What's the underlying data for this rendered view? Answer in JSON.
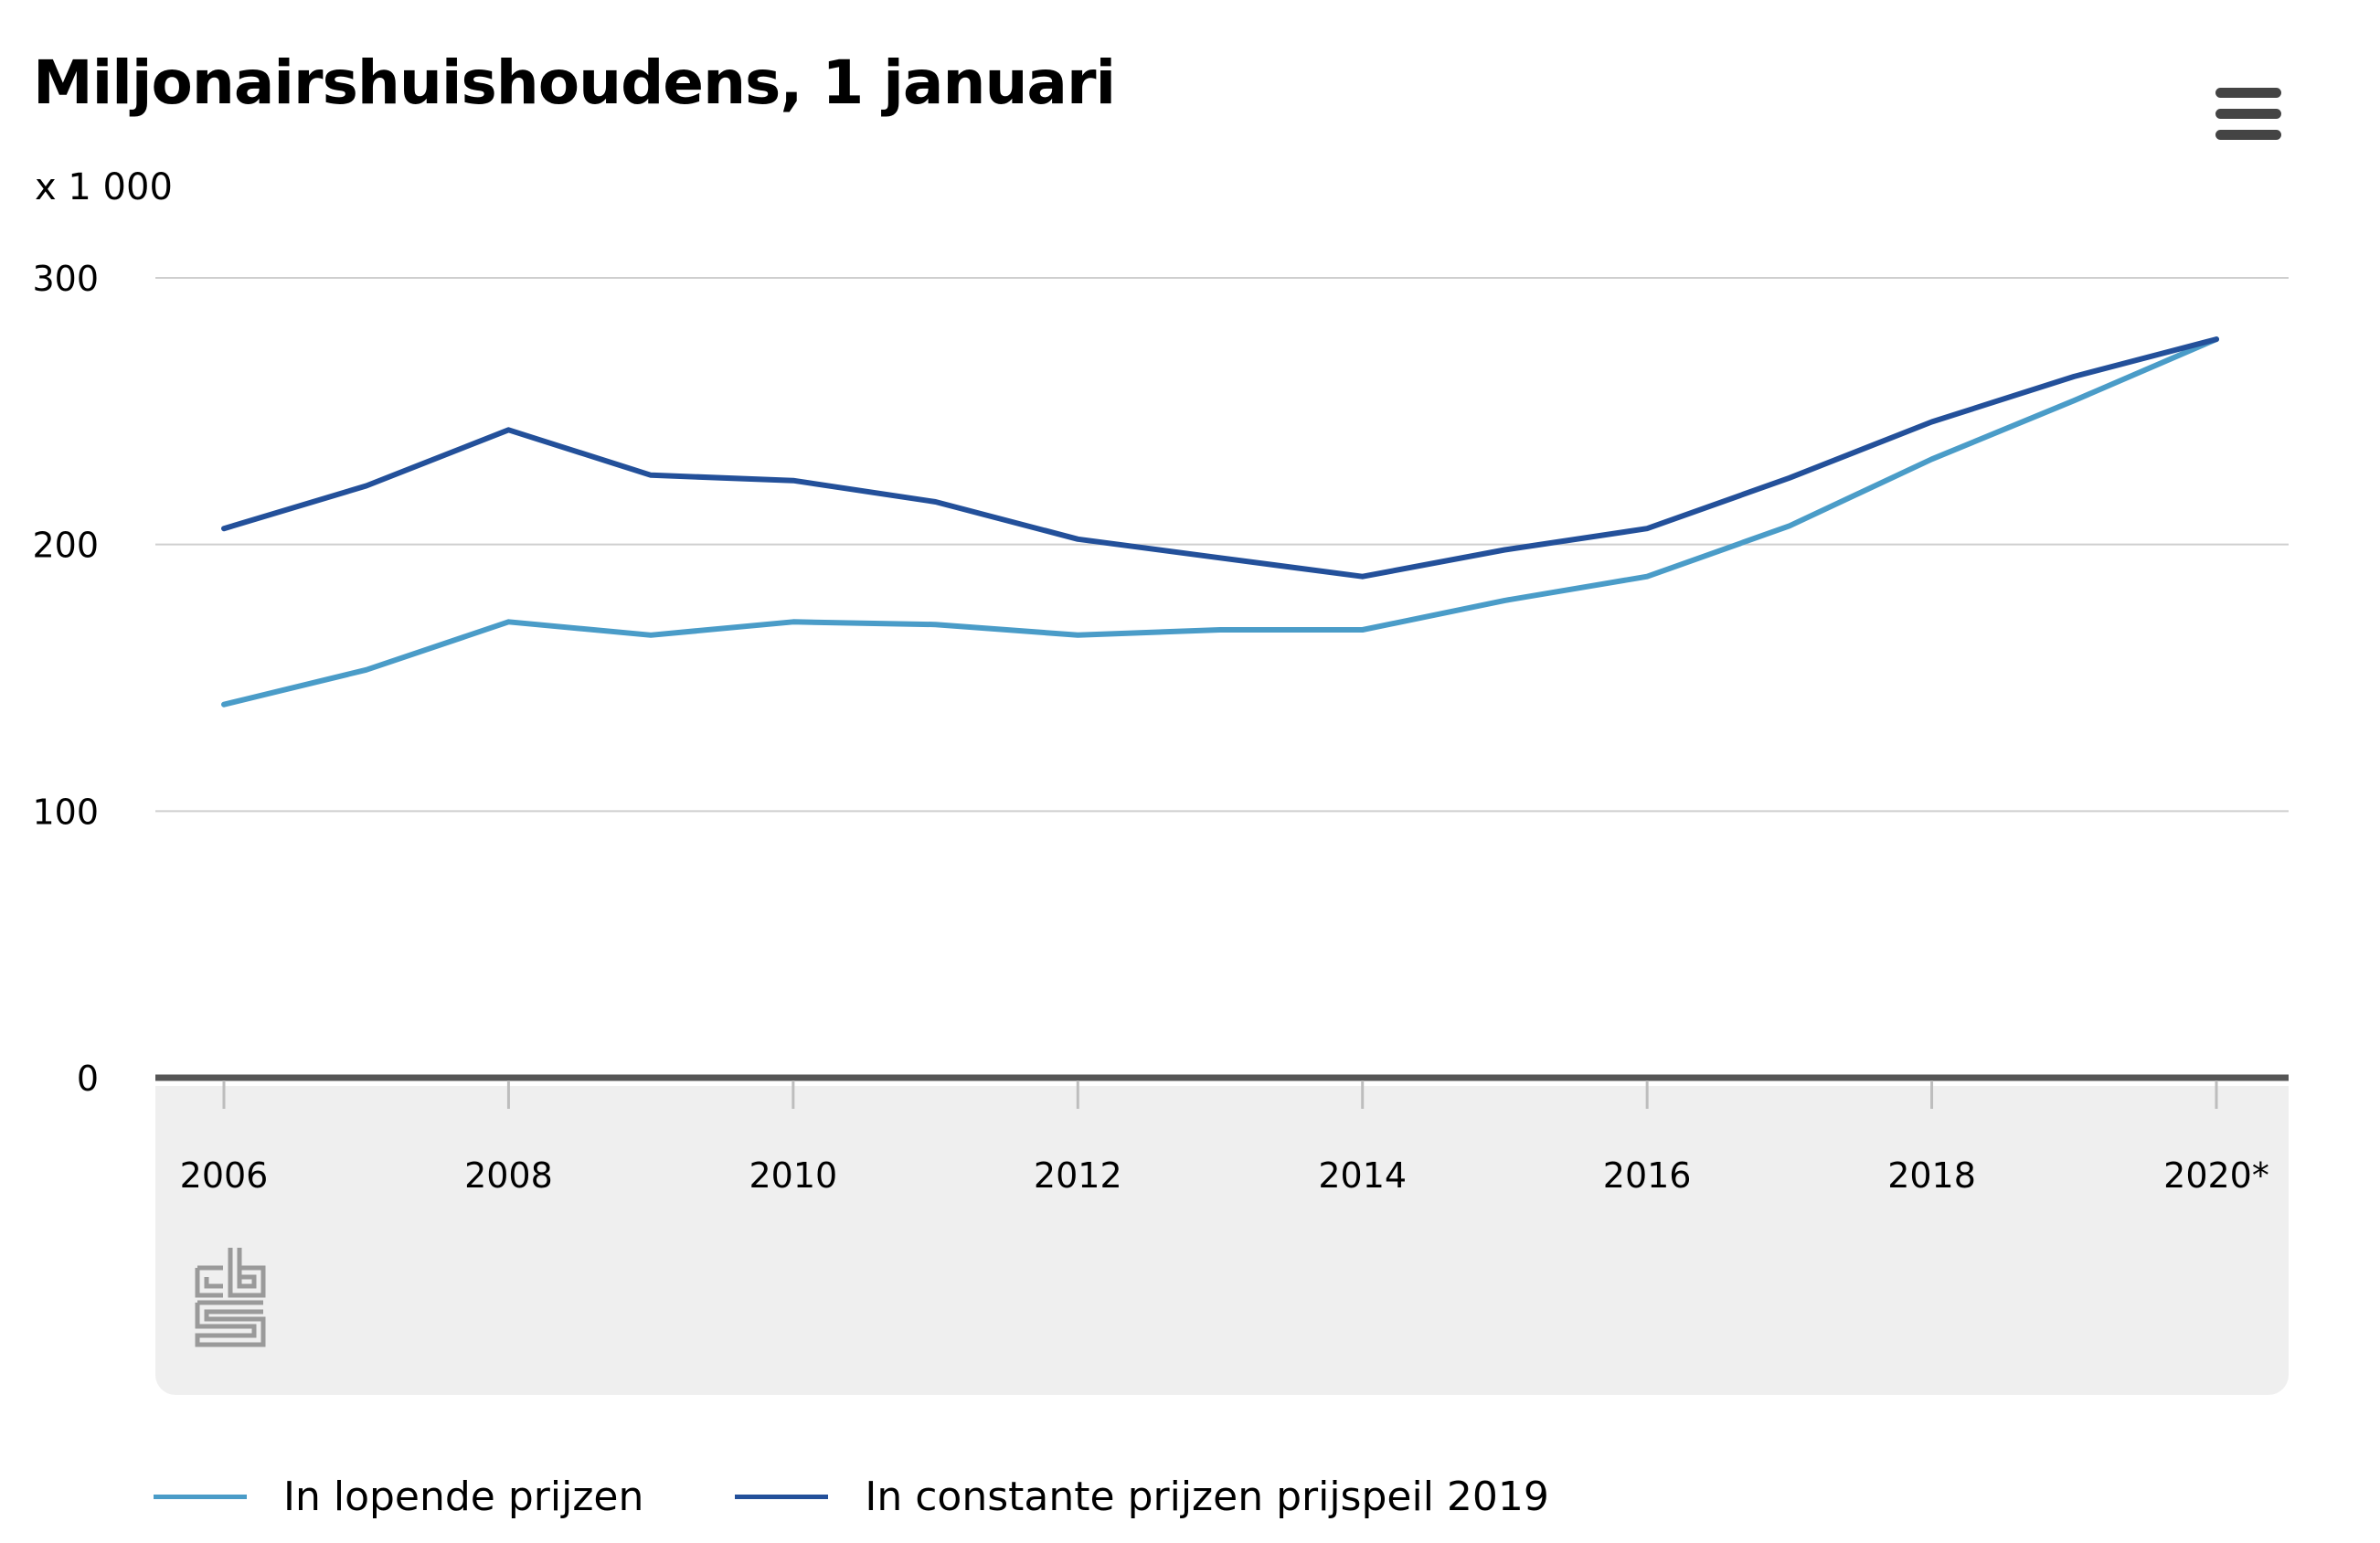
{
  "chart_data": {
    "type": "line",
    "title": "Miljonairshuishoudens, 1 januari",
    "unit_label": "x 1 000",
    "x": [
      "2006",
      "2007",
      "2008",
      "2009",
      "2010",
      "2011",
      "2012",
      "2013",
      "2014",
      "2015",
      "2016",
      "2017",
      "2018",
      "2019",
      "2020*"
    ],
    "x_tick_labels": [
      "2006",
      "2008",
      "2010",
      "2012",
      "2014",
      "2016",
      "2018",
      "2020*"
    ],
    "y_ticks": [
      "0",
      "100",
      "200",
      "300"
    ],
    "ylim": [
      0,
      300
    ],
    "grid": true,
    "legend_position": "bottom-left",
    "series": [
      {
        "name": "In lopende prijzen",
        "color": "#4a9cc8",
        "values": [
          140,
          153,
          171,
          166,
          171,
          170,
          166,
          168,
          168,
          179,
          188,
          207,
          232,
          254,
          277
        ]
      },
      {
        "name": "In constante prijzen prijspeil 2019",
        "color": "#23509a",
        "values": [
          206,
          222,
          243,
          226,
          224,
          216,
          202,
          195,
          188,
          198,
          206,
          225,
          246,
          263,
          277
        ]
      }
    ]
  },
  "menu_icon": "hamburger-menu-icon",
  "logo": "cbs-logo"
}
